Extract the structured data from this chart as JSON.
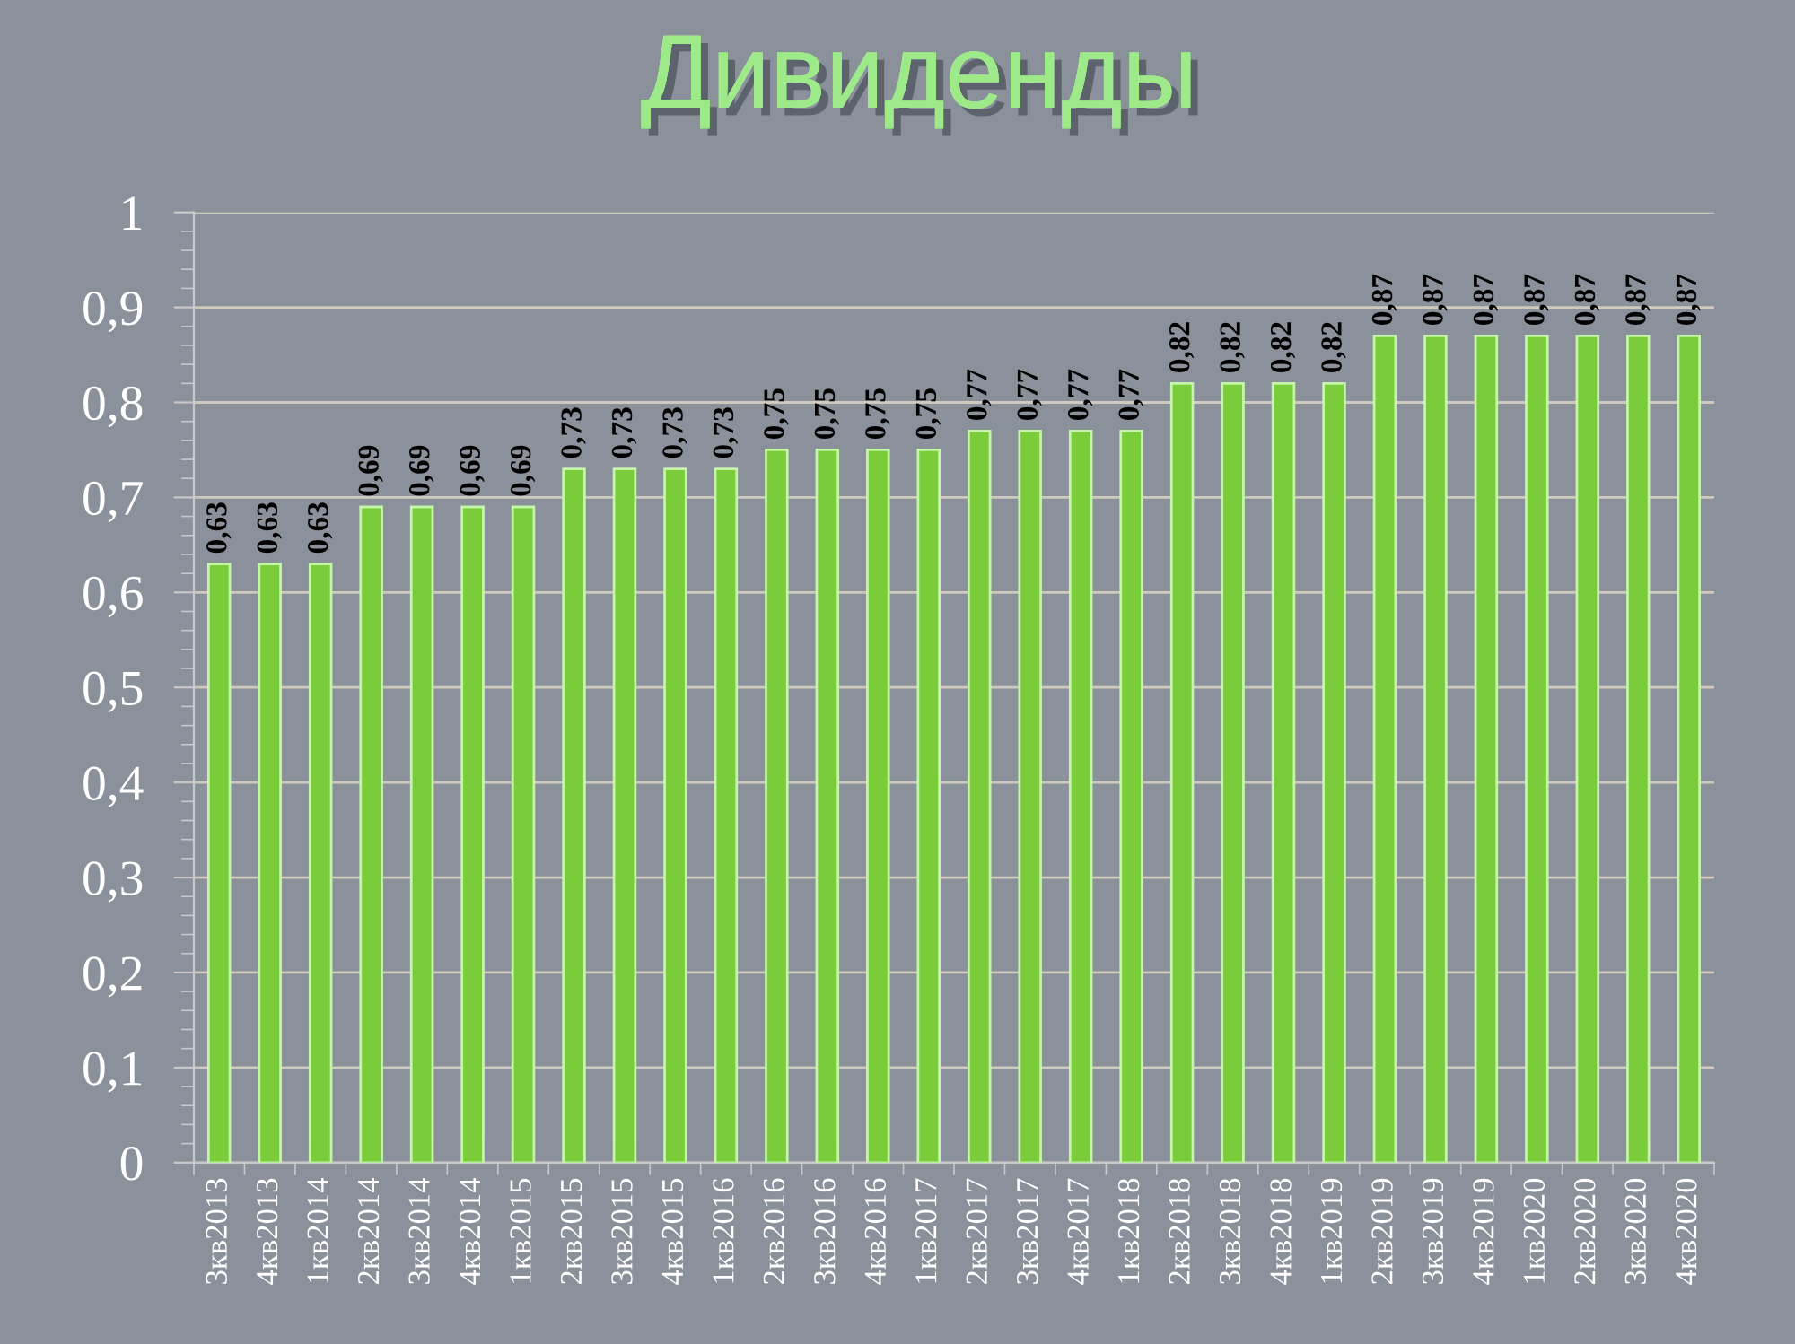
{
  "chart_data": {
    "type": "bar",
    "title": "Дивиденды",
    "categories": [
      "3кв2013",
      "4кв2013",
      "1кв2014",
      "2кв2014",
      "3кв2014",
      "4кв2014",
      "1кв2015",
      "2кв2015",
      "3кв2015",
      "4кв2015",
      "1кв2016",
      "2кв2016",
      "3кв2016",
      "4кв2016",
      "1кв2017",
      "2кв2017",
      "3кв2017",
      "4кв2017",
      "1кв2018",
      "2кв2018",
      "3кв2018",
      "4кв2018",
      "1кв2019",
      "2кв2019",
      "3кв2019",
      "4кв2019",
      "1кв2020",
      "2кв2020",
      "3кв2020",
      "4кв2020"
    ],
    "values": [
      0.63,
      0.63,
      0.63,
      0.69,
      0.69,
      0.69,
      0.69,
      0.73,
      0.73,
      0.73,
      0.73,
      0.75,
      0.75,
      0.75,
      0.75,
      0.77,
      0.77,
      0.77,
      0.77,
      0.82,
      0.82,
      0.82,
      0.82,
      0.87,
      0.87,
      0.87,
      0.87,
      0.87,
      0.87,
      0.87
    ],
    "value_labels": [
      "0,63",
      "0,63",
      "0,63",
      "0,69",
      "0,69",
      "0,69",
      "0,69",
      "0,73",
      "0,73",
      "0,73",
      "0,73",
      "0,75",
      "0,75",
      "0,75",
      "0,75",
      "0,77",
      "0,77",
      "0,77",
      "0,77",
      "0,82",
      "0,82",
      "0,82",
      "0,82",
      "0,87",
      "0,87",
      "0,87",
      "0,87",
      "0,87",
      "0,87",
      "0,87"
    ],
    "color": "#7acc3a",
    "ylim": [
      0,
      1
    ],
    "yticks": [
      0,
      {
        "value": 0.1,
        "label": "0,1"
      },
      {
        "value": 0.2,
        "label": "0,2"
      },
      {
        "value": 0.3,
        "label": "0,3"
      },
      {
        "value": 0.4,
        "label": "0,4"
      },
      {
        "value": 0.5,
        "label": "0,5"
      },
      {
        "value": 0.6,
        "label": "0,6"
      },
      {
        "value": 0.7,
        "label": "0,7"
      },
      {
        "value": 0.8,
        "label": "0,8"
      },
      {
        "value": 0.9,
        "label": "0,9"
      },
      1
    ],
    "grid": "y"
  }
}
